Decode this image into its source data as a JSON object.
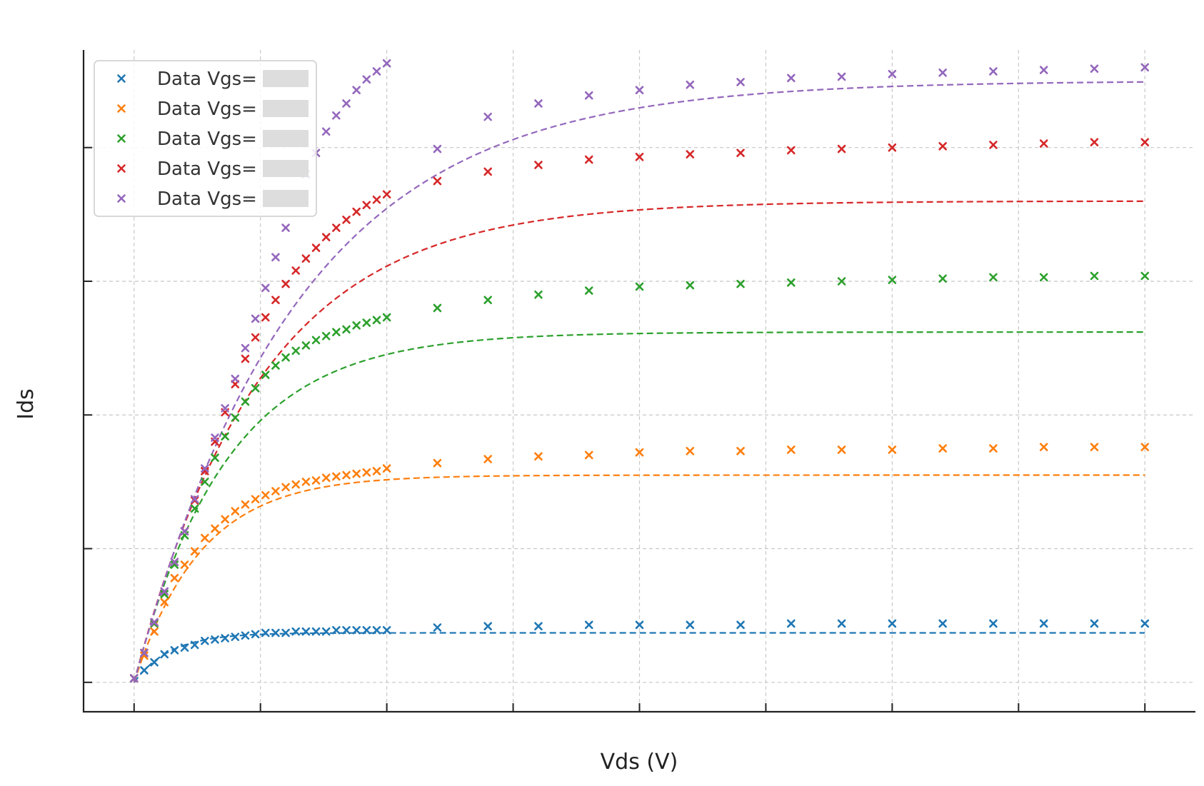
{
  "chart_data": {
    "type": "scatter",
    "xlabel": "Vds (V)",
    "ylabel": "Ids",
    "xlim": [
      -0.2,
      4.2
    ],
    "ylim": [
      -0.22,
      4.73
    ],
    "x_ticks": [
      0,
      0.5,
      1.0,
      1.5,
      2.0,
      2.5,
      3.0,
      3.5,
      4.0
    ],
    "y_ticks": [
      0,
      1,
      2,
      3,
      4
    ],
    "grid": true,
    "legend_position": "upper-left",
    "series": [
      {
        "name": "Data Vgs=",
        "color": "#1f77b4",
        "marker": "x",
        "fit": {
          "id_sat": 0.37,
          "alpha": 7.0,
          "x_end": 4.0
        },
        "x": [
          0,
          0.04,
          0.08,
          0.12,
          0.16,
          0.2,
          0.24,
          0.28,
          0.32,
          0.36,
          0.4,
          0.44,
          0.48,
          0.52,
          0.56,
          0.6,
          0.64,
          0.68,
          0.72,
          0.76,
          0.8,
          0.84,
          0.88,
          0.92,
          0.96,
          1.0,
          1.2,
          1.4,
          1.6,
          1.8,
          2.0,
          2.2,
          2.4,
          2.6,
          2.8,
          3.0,
          3.2,
          3.4,
          3.6,
          3.8,
          4.0
        ],
        "y": [
          0.03,
          0.09,
          0.15,
          0.21,
          0.24,
          0.26,
          0.28,
          0.31,
          0.32,
          0.33,
          0.34,
          0.35,
          0.36,
          0.37,
          0.37,
          0.37,
          0.38,
          0.38,
          0.38,
          0.38,
          0.39,
          0.39,
          0.39,
          0.39,
          0.39,
          0.39,
          0.41,
          0.42,
          0.42,
          0.43,
          0.43,
          0.43,
          0.43,
          0.44,
          0.44,
          0.44,
          0.44,
          0.44,
          0.44,
          0.44,
          0.44
        ]
      },
      {
        "name": "Data Vgs=",
        "color": "#ff7f0e",
        "marker": "x",
        "fit": {
          "id_sat": 1.55,
          "alpha": 3.8,
          "x_end": 4.0
        },
        "x": [
          0,
          0.04,
          0.08,
          0.12,
          0.16,
          0.2,
          0.24,
          0.28,
          0.32,
          0.36,
          0.4,
          0.44,
          0.48,
          0.52,
          0.56,
          0.6,
          0.64,
          0.68,
          0.72,
          0.76,
          0.8,
          0.84,
          0.88,
          0.92,
          0.96,
          1.0,
          1.2,
          1.4,
          1.6,
          1.8,
          2.0,
          2.2,
          2.4,
          2.6,
          2.8,
          3.0,
          3.2,
          3.4,
          3.6,
          3.8,
          4.0
        ],
        "y": [
          0.03,
          0.2,
          0.38,
          0.6,
          0.78,
          0.88,
          0.98,
          1.08,
          1.15,
          1.22,
          1.28,
          1.33,
          1.37,
          1.4,
          1.43,
          1.46,
          1.48,
          1.5,
          1.51,
          1.53,
          1.54,
          1.55,
          1.56,
          1.57,
          1.58,
          1.6,
          1.64,
          1.67,
          1.69,
          1.7,
          1.72,
          1.73,
          1.73,
          1.74,
          1.74,
          1.74,
          1.75,
          1.75,
          1.76,
          1.76,
          1.76
        ]
      },
      {
        "name": "Data Vgs=",
        "color": "#2ca02c",
        "marker": "x",
        "fit": {
          "id_sat": 2.62,
          "alpha": 2.75,
          "x_end": 4.0
        },
        "x": [
          0,
          0.04,
          0.08,
          0.12,
          0.16,
          0.2,
          0.24,
          0.28,
          0.32,
          0.36,
          0.4,
          0.44,
          0.48,
          0.52,
          0.56,
          0.6,
          0.64,
          0.68,
          0.72,
          0.76,
          0.8,
          0.84,
          0.88,
          0.92,
          0.96,
          1.0,
          1.2,
          1.4,
          1.6,
          1.8,
          2.0,
          2.2,
          2.4,
          2.6,
          2.8,
          3.0,
          3.2,
          3.4,
          3.6,
          3.8,
          4.0
        ],
        "y": [
          0.03,
          0.22,
          0.44,
          0.66,
          0.88,
          1.1,
          1.3,
          1.5,
          1.68,
          1.84,
          1.98,
          2.1,
          2.2,
          2.3,
          2.37,
          2.43,
          2.48,
          2.52,
          2.56,
          2.59,
          2.62,
          2.64,
          2.67,
          2.69,
          2.71,
          2.73,
          2.8,
          2.86,
          2.9,
          2.93,
          2.96,
          2.97,
          2.98,
          2.99,
          3.0,
          3.01,
          3.02,
          3.03,
          3.03,
          3.04,
          3.04
        ]
      },
      {
        "name": "Data Vgs=",
        "color": "#d62728",
        "marker": "x",
        "fit": {
          "id_sat": 3.6,
          "alpha": 2.0,
          "x_end": 4.0
        },
        "x": [
          0,
          0.04,
          0.08,
          0.12,
          0.16,
          0.2,
          0.24,
          0.28,
          0.32,
          0.36,
          0.4,
          0.44,
          0.48,
          0.52,
          0.56,
          0.6,
          0.64,
          0.68,
          0.72,
          0.76,
          0.8,
          0.84,
          0.88,
          0.92,
          0.96,
          1.0,
          1.2,
          1.4,
          1.6,
          1.8,
          2.0,
          2.2,
          2.4,
          2.6,
          2.8,
          3.0,
          3.2,
          3.4,
          3.6,
          3.8,
          4.0
        ],
        "y": [
          0.03,
          0.22,
          0.45,
          0.68,
          0.9,
          1.13,
          1.36,
          1.58,
          1.8,
          2.02,
          2.23,
          2.42,
          2.58,
          2.73,
          2.86,
          2.98,
          3.08,
          3.17,
          3.25,
          3.33,
          3.4,
          3.46,
          3.52,
          3.57,
          3.61,
          3.65,
          3.75,
          3.82,
          3.87,
          3.91,
          3.93,
          3.95,
          3.96,
          3.98,
          3.99,
          4.0,
          4.01,
          4.02,
          4.03,
          4.04,
          4.04
        ]
      },
      {
        "name": "Data Vgs=",
        "color": "#9467bd",
        "marker": "x",
        "fit": {
          "id_sat": 4.5,
          "alpha": 1.55,
          "x_end": 4.0
        },
        "x": [
          0,
          0.04,
          0.08,
          0.12,
          0.16,
          0.2,
          0.24,
          0.28,
          0.32,
          0.36,
          0.4,
          0.44,
          0.48,
          0.52,
          0.56,
          0.6,
          0.64,
          0.68,
          0.72,
          0.76,
          0.8,
          0.84,
          0.88,
          0.92,
          0.96,
          1.0,
          1.2,
          1.4,
          1.6,
          1.8,
          2.0,
          2.2,
          2.4,
          2.6,
          2.8,
          3.0,
          3.2,
          3.4,
          3.6,
          3.8,
          4.0
        ],
        "y": [
          0.03,
          0.22,
          0.45,
          0.68,
          0.9,
          1.13,
          1.37,
          1.6,
          1.83,
          2.05,
          2.27,
          2.5,
          2.72,
          2.95,
          3.18,
          3.4,
          3.6,
          3.8,
          3.96,
          4.12,
          4.24,
          4.33,
          4.43,
          4.51,
          4.57,
          4.63,
          3.99,
          4.23,
          4.33,
          4.39,
          4.43,
          4.47,
          4.49,
          4.52,
          4.53,
          4.55,
          4.56,
          4.57,
          4.58,
          4.59,
          4.6
        ]
      }
    ]
  }
}
